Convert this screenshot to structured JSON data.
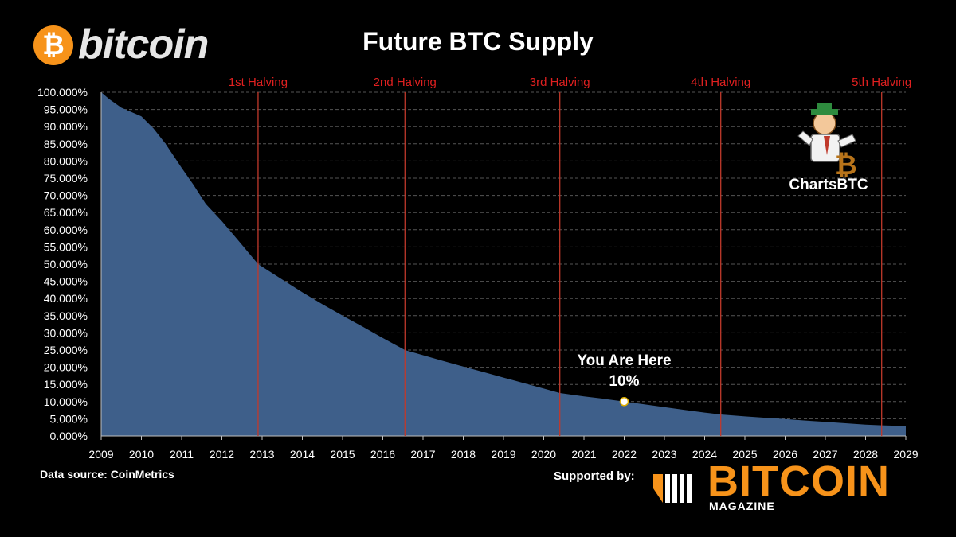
{
  "header": {
    "brand_logo_text": "bitcoin",
    "brand_coin_symbol": "₿",
    "brand_color": "#f7931a"
  },
  "chart_data": {
    "type": "area",
    "title": "Future BTC Supply",
    "xlabel": "",
    "ylabel": "",
    "x_ticks": [
      "2009",
      "2010",
      "2011",
      "2012",
      "2013",
      "2014",
      "2015",
      "2016",
      "2017",
      "2018",
      "2019",
      "2020",
      "2021",
      "2022",
      "2023",
      "2024",
      "2025",
      "2026",
      "2027",
      "2028",
      "2029"
    ],
    "y_ticks": [
      "0.000%",
      "5.000%",
      "10.000%",
      "15.000%",
      "20.000%",
      "25.000%",
      "30.000%",
      "35.000%",
      "40.000%",
      "45.000%",
      "50.000%",
      "55.000%",
      "60.000%",
      "65.000%",
      "70.000%",
      "75.000%",
      "80.000%",
      "85.000%",
      "90.000%",
      "95.000%",
      "100.000%"
    ],
    "xlim": [
      2009,
      2029
    ],
    "ylim": [
      0,
      100
    ],
    "grid": "horizontal dashed",
    "series": [
      {
        "color": "#3e5f8a",
        "x": [
          2009.0,
          2009.2,
          2009.5,
          2009.8,
          2010.0,
          2010.3,
          2010.6,
          2011.0,
          2011.3,
          2011.6,
          2012.0,
          2012.4,
          2012.9,
          2013.5,
          2014.0,
          2014.5,
          2015.0,
          2015.5,
          2016.0,
          2016.55,
          2017.0,
          2017.5,
          2018.0,
          2018.5,
          2019.0,
          2019.5,
          2020.0,
          2020.4,
          2021.0,
          2021.5,
          2022.0,
          2022.5,
          2023.0,
          2023.5,
          2024.0,
          2024.4,
          2025.0,
          2025.5,
          2026.0,
          2026.5,
          2027.0,
          2027.5,
          2028.0,
          2028.4,
          2029.0
        ],
        "y": [
          100.0,
          98.0,
          95.5,
          94.0,
          93.0,
          89.5,
          85.0,
          78.0,
          73.0,
          67.5,
          62.5,
          57.0,
          50.0,
          45.5,
          41.8,
          38.3,
          35.0,
          31.8,
          28.5,
          25.0,
          23.5,
          21.8,
          20.2,
          18.6,
          17.0,
          15.4,
          13.8,
          12.5,
          11.5,
          10.8,
          10.0,
          9.2,
          8.4,
          7.6,
          6.8,
          6.25,
          5.7,
          5.3,
          4.9,
          4.5,
          4.1,
          3.7,
          3.3,
          3.1,
          2.9
        ]
      }
    ],
    "halvings": [
      {
        "label": "1st Halving",
        "x": 2012.9
      },
      {
        "label": "2nd Halving",
        "x": 2016.55
      },
      {
        "label": "3rd Halving",
        "x": 2020.4
      },
      {
        "label": "4th Halving",
        "x": 2024.4
      },
      {
        "label": "5th Halving",
        "x": 2028.4
      }
    ],
    "annotation": {
      "label": "You Are Here",
      "value_label": "10%",
      "x": 2022.0,
      "y": 10.0
    },
    "colors": {
      "halving_line": "#c0392b",
      "halving_text": "#e02020",
      "grid": "#555555",
      "axis_text": "#ffffff"
    }
  },
  "watermark": {
    "label": "ChartsBTC"
  },
  "footer": {
    "data_source": "Data source:  CoinMetrics",
    "supported_by": "Supported by:",
    "sponsor_logo_text": "BITCOIN",
    "sponsor_logo_sub": "MAGAZINE"
  }
}
